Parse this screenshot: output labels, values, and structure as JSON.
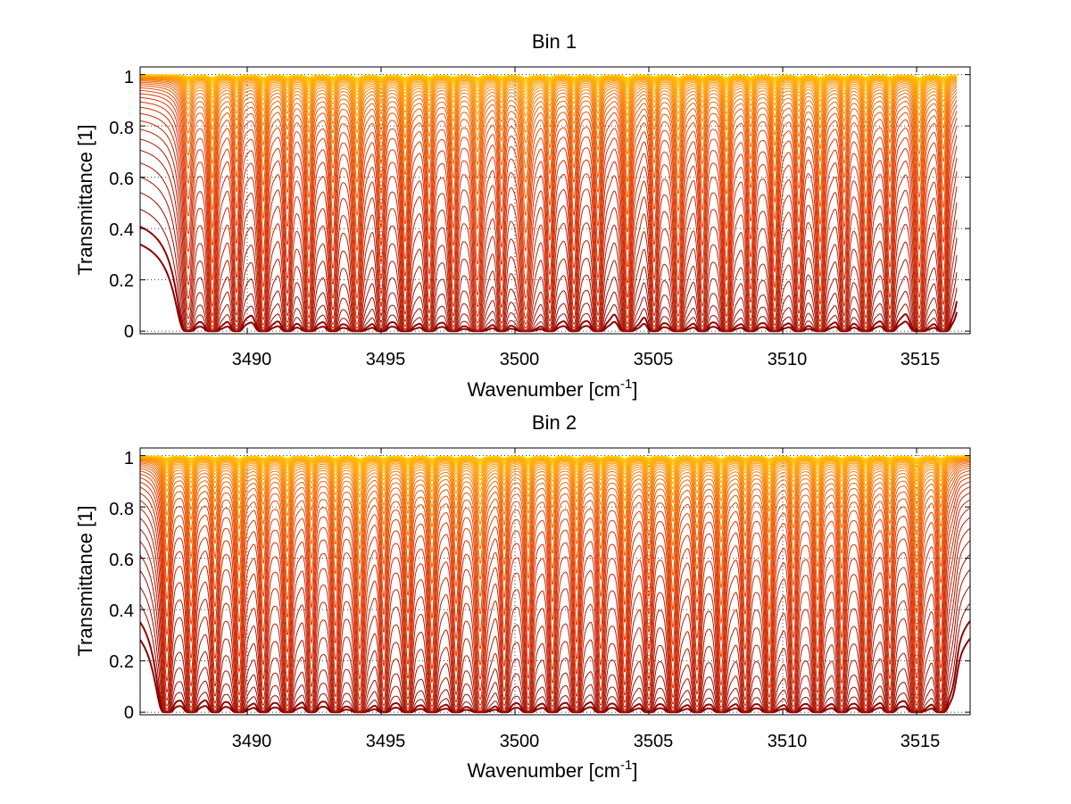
{
  "chart_data": [
    {
      "type": "line",
      "title": "Bin 1",
      "xlabel": "Wavenumber [cm",
      "xlabel_superscript": "-1",
      "xlabel_suffix": "]",
      "ylabel": "Transmittance [1]",
      "xlim": [
        3486,
        3517
      ],
      "ylim": [
        -0.01,
        1.03
      ],
      "data_x_range": [
        3486,
        3516.5
      ],
      "x_ticks": [
        "3490",
        "3495",
        "3500",
        "3505",
        "3510",
        "3515"
      ],
      "x_tick_values": [
        3490,
        3495,
        3500,
        3505,
        3510,
        3515
      ],
      "y_ticks": [
        "0",
        "0.2",
        "0.4",
        "0.6",
        "0.8",
        "1"
      ],
      "y_tick_values": [
        0,
        0.2,
        0.4,
        0.6,
        0.8,
        1
      ],
      "grid": "dotted",
      "series_count": 40,
      "line_colors": {
        "low_transmittance": "#8b0000",
        "mid": "#e03000",
        "high_transmittance": "#ff9a00",
        "top": "#ffd200"
      },
      "absorption_lines": [
        {
          "center": 3487.8,
          "depth": 0.55,
          "width": 0.16
        },
        {
          "center": 3488.7,
          "depth": 0.95,
          "width": 0.13
        },
        {
          "center": 3489.6,
          "depth": 0.6,
          "width": 0.13
        },
        {
          "center": 3490.6,
          "depth": 0.85,
          "width": 0.13
        },
        {
          "center": 3491.5,
          "depth": 0.6,
          "width": 0.13
        },
        {
          "center": 3492.3,
          "depth": 0.8,
          "width": 0.13
        },
        {
          "center": 3493.2,
          "depth": 0.65,
          "width": 0.13
        },
        {
          "center": 3494.1,
          "depth": 1.0,
          "width": 0.14
        },
        {
          "center": 3495.0,
          "depth": 0.6,
          "width": 0.13
        },
        {
          "center": 3495.9,
          "depth": 0.9,
          "width": 0.13
        },
        {
          "center": 3496.8,
          "depth": 0.7,
          "width": 0.13
        },
        {
          "center": 3497.7,
          "depth": 0.75,
          "width": 0.13
        },
        {
          "center": 3498.6,
          "depth": 0.95,
          "width": 0.15
        },
        {
          "center": 3499.5,
          "depth": 0.6,
          "width": 0.13
        },
        {
          "center": 3500.4,
          "depth": 1.0,
          "width": 0.16
        },
        {
          "center": 3501.3,
          "depth": 0.7,
          "width": 0.13
        },
        {
          "center": 3502.2,
          "depth": 0.65,
          "width": 0.13
        },
        {
          "center": 3503.1,
          "depth": 0.75,
          "width": 0.13
        },
        {
          "center": 3504.2,
          "depth": 1.0,
          "width": 0.13
        },
        {
          "center": 3505.2,
          "depth": 0.6,
          "width": 0.13
        },
        {
          "center": 3506.1,
          "depth": 0.95,
          "width": 0.14
        },
        {
          "center": 3507.0,
          "depth": 0.6,
          "width": 0.13
        },
        {
          "center": 3507.9,
          "depth": 0.95,
          "width": 0.13
        },
        {
          "center": 3508.8,
          "depth": 0.7,
          "width": 0.13
        },
        {
          "center": 3509.7,
          "depth": 0.85,
          "width": 0.13
        },
        {
          "center": 3510.6,
          "depth": 0.7,
          "width": 0.13
        },
        {
          "center": 3511.4,
          "depth": 0.9,
          "width": 0.13
        },
        {
          "center": 3512.3,
          "depth": 0.6,
          "width": 0.13
        },
        {
          "center": 3513.1,
          "depth": 0.8,
          "width": 0.13
        },
        {
          "center": 3514.0,
          "depth": 0.65,
          "width": 0.13
        },
        {
          "center": 3515.1,
          "depth": 1.0,
          "width": 0.14
        },
        {
          "center": 3516.0,
          "depth": 0.75,
          "width": 0.13
        }
      ]
    },
    {
      "type": "line",
      "title": "Bin 2",
      "xlabel": "Wavenumber [cm",
      "xlabel_superscript": "-1",
      "xlabel_suffix": "]",
      "ylabel": "Transmittance [1]",
      "xlim": [
        3486,
        3517
      ],
      "ylim": [
        -0.01,
        1.03
      ],
      "data_x_range": [
        3486,
        3517
      ],
      "x_ticks": [
        "3490",
        "3495",
        "3500",
        "3505",
        "3510",
        "3515"
      ],
      "x_tick_values": [
        3490,
        3495,
        3500,
        3505,
        3510,
        3515
      ],
      "y_ticks": [
        "0",
        "0.2",
        "0.4",
        "0.6",
        "0.8",
        "1"
      ],
      "y_tick_values": [
        0,
        0.2,
        0.4,
        0.6,
        0.8,
        1
      ],
      "grid": "dotted",
      "series_count": 40,
      "line_colors": {
        "low_transmittance": "#8b0000",
        "mid": "#e03000",
        "high_transmittance": "#ff9a00",
        "top": "#ffd200"
      },
      "absorption_lines": [
        {
          "center": 3487.0,
          "depth": 0.7,
          "width": 0.13
        },
        {
          "center": 3487.9,
          "depth": 0.75,
          "width": 0.13
        },
        {
          "center": 3488.8,
          "depth": 0.6,
          "width": 0.13
        },
        {
          "center": 3489.7,
          "depth": 0.9,
          "width": 0.13
        },
        {
          "center": 3490.6,
          "depth": 0.65,
          "width": 0.13
        },
        {
          "center": 3491.5,
          "depth": 0.85,
          "width": 0.13
        },
        {
          "center": 3492.4,
          "depth": 0.6,
          "width": 0.13
        },
        {
          "center": 3493.3,
          "depth": 0.75,
          "width": 0.13
        },
        {
          "center": 3494.2,
          "depth": 1.0,
          "width": 0.14
        },
        {
          "center": 3495.1,
          "depth": 0.65,
          "width": 0.13
        },
        {
          "center": 3496.0,
          "depth": 0.8,
          "width": 0.13
        },
        {
          "center": 3496.9,
          "depth": 0.85,
          "width": 0.13
        },
        {
          "center": 3497.8,
          "depth": 0.7,
          "width": 0.13
        },
        {
          "center": 3498.7,
          "depth": 1.0,
          "width": 0.15
        },
        {
          "center": 3499.6,
          "depth": 0.65,
          "width": 0.13
        },
        {
          "center": 3500.5,
          "depth": 0.8,
          "width": 0.13
        },
        {
          "center": 3501.4,
          "depth": 0.7,
          "width": 0.13
        },
        {
          "center": 3502.3,
          "depth": 0.75,
          "width": 0.13
        },
        {
          "center": 3503.2,
          "depth": 0.65,
          "width": 0.13
        },
        {
          "center": 3504.1,
          "depth": 0.9,
          "width": 0.13
        },
        {
          "center": 3505.0,
          "depth": 0.65,
          "width": 0.13
        },
        {
          "center": 3505.9,
          "depth": 0.95,
          "width": 0.13
        },
        {
          "center": 3506.8,
          "depth": 0.7,
          "width": 0.13
        },
        {
          "center": 3507.7,
          "depth": 0.9,
          "width": 0.13
        },
        {
          "center": 3508.6,
          "depth": 0.65,
          "width": 0.13
        },
        {
          "center": 3509.5,
          "depth": 0.95,
          "width": 0.13
        },
        {
          "center": 3510.4,
          "depth": 0.7,
          "width": 0.13
        },
        {
          "center": 3511.3,
          "depth": 0.85,
          "width": 0.13
        },
        {
          "center": 3512.2,
          "depth": 0.7,
          "width": 0.13
        },
        {
          "center": 3513.1,
          "depth": 0.85,
          "width": 0.13
        },
        {
          "center": 3514.0,
          "depth": 0.65,
          "width": 0.13
        },
        {
          "center": 3515.0,
          "depth": 1.0,
          "width": 0.14
        },
        {
          "center": 3515.9,
          "depth": 0.7,
          "width": 0.13
        }
      ]
    }
  ]
}
